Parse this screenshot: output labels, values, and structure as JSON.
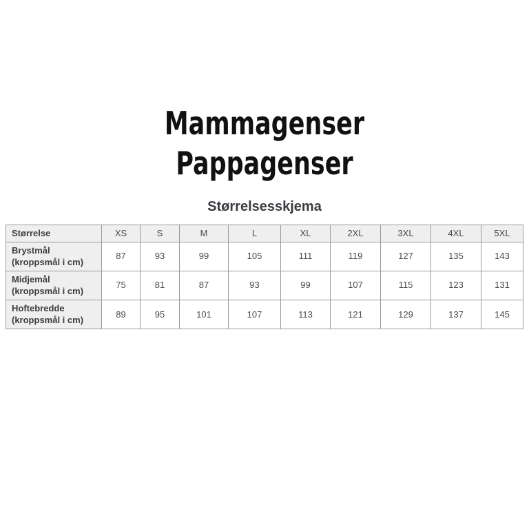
{
  "titles": {
    "line1": "Mammagenser",
    "line2": "Pappagenser"
  },
  "section": {
    "heading": "Størrelsesskjema"
  },
  "size_table": {
    "columns": [
      "Størrelse",
      "XS",
      "S",
      "M",
      "L",
      "XL",
      "2XL",
      "3XL",
      "4XL",
      "5XL"
    ],
    "rows": [
      {
        "label": "Brystmål (kroppsmål i cm)",
        "values": [
          "87",
          "93",
          "99",
          "105",
          "111",
          "119",
          "127",
          "135",
          "143"
        ]
      },
      {
        "label": "Midjemål (kroppsmål i cm)",
        "values": [
          "75",
          "81",
          "87",
          "93",
          "99",
          "107",
          "115",
          "123",
          "131"
        ]
      },
      {
        "label": "Hoftebredde (kroppsmål i cm)",
        "values": [
          "89",
          "95",
          "101",
          "107",
          "113",
          "121",
          "129",
          "137",
          "145"
        ]
      }
    ]
  },
  "colors": {
    "background": "#ffffff",
    "title_text": "#111111",
    "heading_text": "#3a3a40",
    "table_border": "#999999",
    "table_header_bg": "#efefef",
    "table_label_text": "#3d3d3d",
    "table_value_text": "#4a4a4a"
  }
}
